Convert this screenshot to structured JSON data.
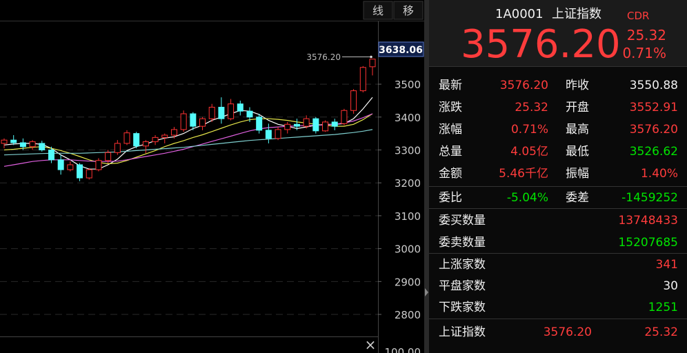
{
  "toolbar": {
    "buttons": [
      "线",
      "移"
    ]
  },
  "chart_data": {
    "type": "candlestick",
    "open": [
      3320,
      3330,
      3322,
      3310,
      3320,
      3300,
      3270,
      3240,
      3255,
      3215,
      3240,
      3268,
      3292,
      3320,
      3350,
      3312,
      3325,
      3338,
      3345,
      3362,
      3410,
      3372,
      3395,
      3430,
      3395,
      3440,
      3418,
      3400,
      3360,
      3335,
      3362,
      3378,
      3372,
      3395,
      3358,
      3385,
      3380,
      3420,
      3480,
      3552.91
    ],
    "high": [
      3335,
      3345,
      3335,
      3330,
      3328,
      3310,
      3285,
      3265,
      3260,
      3245,
      3275,
      3300,
      3330,
      3360,
      3355,
      3330,
      3345,
      3350,
      3370,
      3420,
      3415,
      3400,
      3440,
      3460,
      3455,
      3450,
      3430,
      3410,
      3380,
      3370,
      3385,
      3395,
      3405,
      3400,
      3390,
      3395,
      3425,
      3485,
      3555,
      3576.2
    ],
    "low": [
      3305,
      3315,
      3300,
      3300,
      3295,
      3260,
      3225,
      3235,
      3205,
      3210,
      3235,
      3260,
      3285,
      3315,
      3305,
      3290,
      3315,
      3320,
      3335,
      3355,
      3360,
      3360,
      3385,
      3380,
      3390,
      3405,
      3385,
      3350,
      3320,
      3330,
      3350,
      3360,
      3365,
      3350,
      3355,
      3360,
      3375,
      3410,
      3475,
      3526.62
    ],
    "close": [
      3330,
      3322,
      3310,
      3325,
      3300,
      3270,
      3240,
      3255,
      3215,
      3240,
      3268,
      3292,
      3320,
      3352,
      3312,
      3325,
      3338,
      3345,
      3362,
      3410,
      3372,
      3395,
      3430,
      3395,
      3440,
      3418,
      3400,
      3360,
      3335,
      3362,
      3378,
      3372,
      3395,
      3358,
      3385,
      3372,
      3420,
      3480,
      3550.88,
      3576.2
    ],
    "colors": {
      "up": "#ff3232",
      "down": "#54fcfc"
    },
    "series": [
      {
        "color": "#ffffff",
        "values": [
          3315,
          3318,
          3320,
          3320,
          3317,
          3305,
          3285,
          3270,
          3252,
          3242,
          3242,
          3255,
          3272,
          3298,
          3310,
          3318,
          3328,
          3336,
          3340,
          3350,
          3365,
          3375,
          3390,
          3400,
          3410,
          3420,
          3418,
          3408,
          3390,
          3378,
          3372,
          3365,
          3370,
          3375,
          3378,
          3378,
          3380,
          3395,
          3425,
          3460
        ]
      },
      {
        "color": "#e6e64a",
        "values": [
          3300,
          3302,
          3305,
          3308,
          3310,
          3305,
          3298,
          3290,
          3280,
          3270,
          3262,
          3258,
          3260,
          3268,
          3278,
          3288,
          3298,
          3310,
          3320,
          3328,
          3338,
          3346,
          3356,
          3366,
          3376,
          3385,
          3392,
          3395,
          3395,
          3393,
          3390,
          3385,
          3382,
          3378,
          3375,
          3372,
          3372,
          3378,
          3392,
          3410
        ]
      },
      {
        "color": "#e060e0",
        "values": [
          3250,
          3255,
          3260,
          3265,
          3268,
          3270,
          3270,
          3270,
          3268,
          3266,
          3265,
          3265,
          3266,
          3270,
          3275,
          3280,
          3285,
          3290,
          3296,
          3302,
          3310,
          3318,
          3326,
          3334,
          3342,
          3350,
          3358,
          3364,
          3368,
          3370,
          3372,
          3373,
          3374,
          3375,
          3376,
          3378,
          3382,
          3388,
          3398,
          3410
        ]
      },
      {
        "color": "#7fcfcf",
        "values": [
          3285,
          3286,
          3287,
          3288,
          3289,
          3290,
          3290,
          3290,
          3290,
          3291,
          3292,
          3293,
          3294,
          3296,
          3298,
          3300,
          3302,
          3304,
          3306,
          3308,
          3311,
          3314,
          3317,
          3320,
          3323,
          3326,
          3329,
          3331,
          3333,
          3335,
          3337,
          3339,
          3341,
          3343,
          3345,
          3347,
          3350,
          3353,
          3357,
          3362
        ]
      }
    ],
    "ylim": [
      2733,
      3693
    ],
    "yticks": [
      3500,
      3400,
      3300,
      3200,
      3100,
      3000,
      2900,
      2800
    ],
    "grid": true,
    "axis_box_label": "3638.06",
    "last_price_label": "3576.20",
    "sub_axis_label": "100.00"
  },
  "quote": {
    "code": "1A0001",
    "name": "上证指数",
    "tag": "CDR",
    "price": "3576.20",
    "change": "25.32",
    "change_pct": "0.71%",
    "stats": [
      [
        {
          "label": "最新",
          "value": "3576.20"
        },
        {
          "label": "昨收",
          "value": "3550.88"
        }
      ],
      [
        {
          "label": "涨跌",
          "value": "25.32"
        },
        {
          "label": "开盘",
          "value": "3552.91"
        }
      ],
      [
        {
          "label": "涨幅",
          "value": "0.71%"
        },
        {
          "label": "最高",
          "value": "3576.20"
        }
      ],
      [
        {
          "label": "总量",
          "value": "4.05亿"
        },
        {
          "label": "最低",
          "value": "3526.62"
        }
      ],
      [
        {
          "label": "金额",
          "value": "5.46千亿"
        },
        {
          "label": "振幅",
          "value": "1.40%"
        }
      ]
    ],
    "order_ratio": [
      {
        "label": "委比",
        "value": "-5.04%"
      },
      {
        "label": "委差",
        "value": "-1459252"
      }
    ],
    "orders": [
      {
        "label": "委买数量",
        "value": "13748433"
      },
      {
        "label": "委卖数量",
        "value": "15207685"
      }
    ],
    "breadth": [
      {
        "label": "上涨家数",
        "value": "341"
      },
      {
        "label": "平盘家数",
        "value": "30"
      },
      {
        "label": "下跌家数",
        "value": "1251"
      }
    ],
    "index_row": {
      "name": "上证指数",
      "price": "3576.20",
      "change": "25.32"
    }
  }
}
